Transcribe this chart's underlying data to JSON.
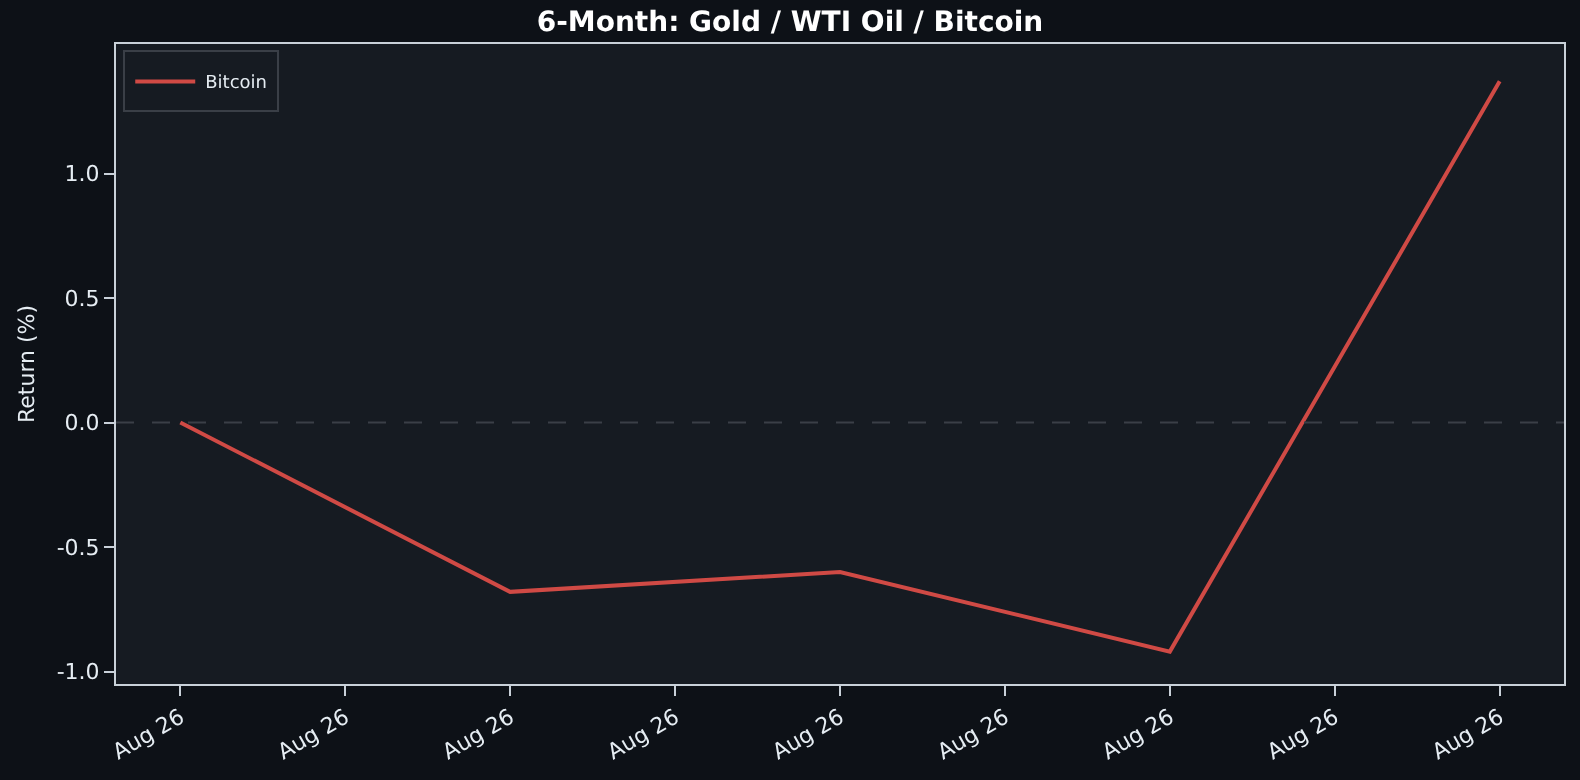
{
  "chart_data": {
    "type": "line",
    "title": "6-Month: Gold / WTI Oil / Bitcoin",
    "ylabel": "Return (%)",
    "categories": [
      "Aug 26",
      "Aug 26",
      "Aug 26",
      "Aug 26",
      "Aug 26",
      "Aug 26",
      "Aug 26",
      "Aug 26",
      "Aug 26"
    ],
    "series": [
      {
        "name": "Bitcoin",
        "color": "#d04a45",
        "values": [
          0,
          null,
          -0.68,
          null,
          -0.6,
          null,
          -0.92,
          null,
          1.37
        ]
      }
    ],
    "ylim": [
      -1.05,
      1.52
    ],
    "yticks": [
      {
        "value": -1,
        "label": "-1.0"
      },
      -0.5,
      {
        "value": 0,
        "label": "0.0"
      },
      0.5,
      {
        "value": 1,
        "label": "1.0"
      }
    ],
    "ref_lines": [
      {
        "axis": "y",
        "value": 0,
        "color": "#3a3f47",
        "line_style": "dashed"
      }
    ],
    "legend": "top left",
    "grid": false,
    "marker": "none",
    "line_style": "solid"
  }
}
